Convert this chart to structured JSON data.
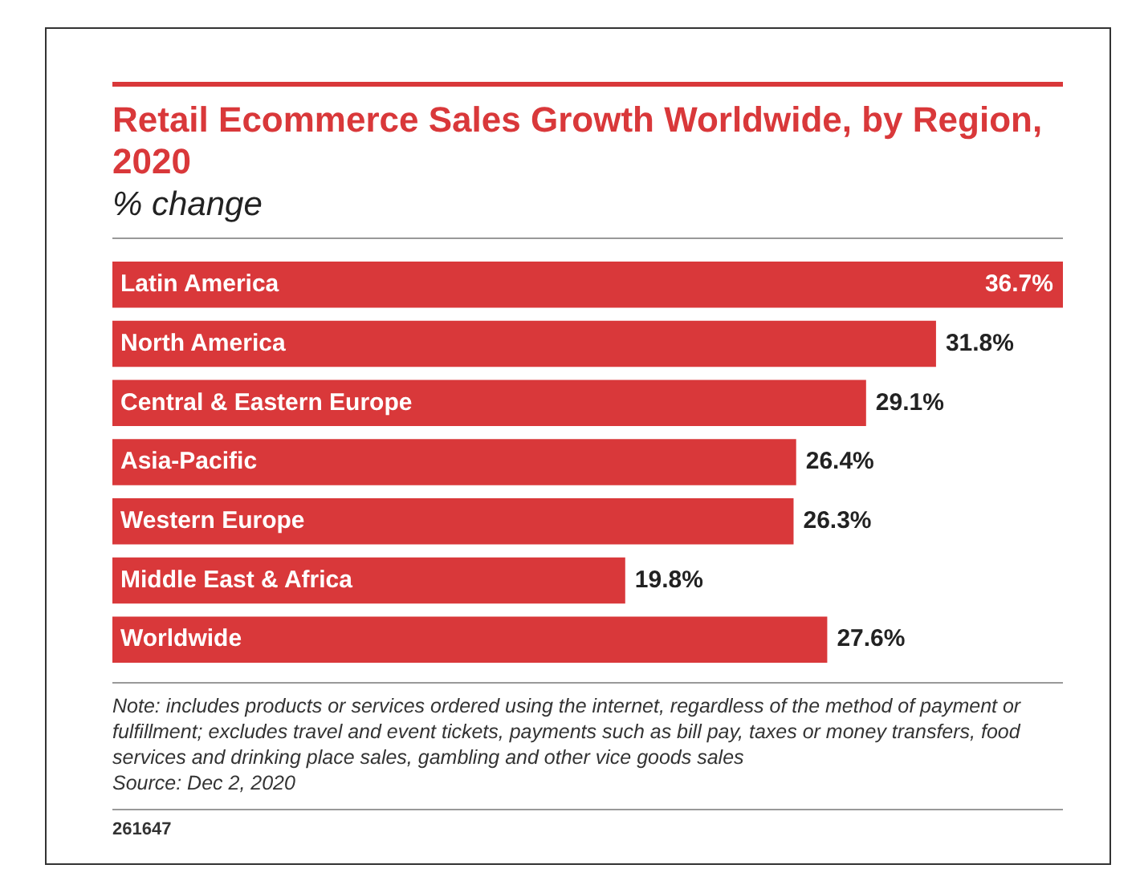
{
  "chart_data": {
    "type": "bar",
    "orientation": "horizontal",
    "title": "Retail Ecommerce Sales Growth Worldwide, by Region, 2020",
    "subtitle": "% change",
    "categories": [
      "Latin America",
      "North America",
      "Central & Eastern Europe",
      "Asia-Pacific",
      "Western Europe",
      "Middle East & Africa",
      "Worldwide"
    ],
    "values": [
      36.7,
      31.8,
      29.1,
      26.4,
      26.3,
      19.8,
      27.6
    ],
    "value_labels": [
      "36.7%",
      "31.8%",
      "29.1%",
      "26.4%",
      "26.3%",
      "19.8%",
      "27.6%"
    ],
    "color": "#d9383a",
    "annotations": [
      "Note: includes products or services ordered using the internet, regardless of the method of payment or fulfillment; excludes travel and event tickets, payments such as bill pay, taxes or money transfers, food services and drinking place sales, gambling and other vice goods sales",
      "Source: Dec 2, 2020",
      "261647"
    ]
  }
}
